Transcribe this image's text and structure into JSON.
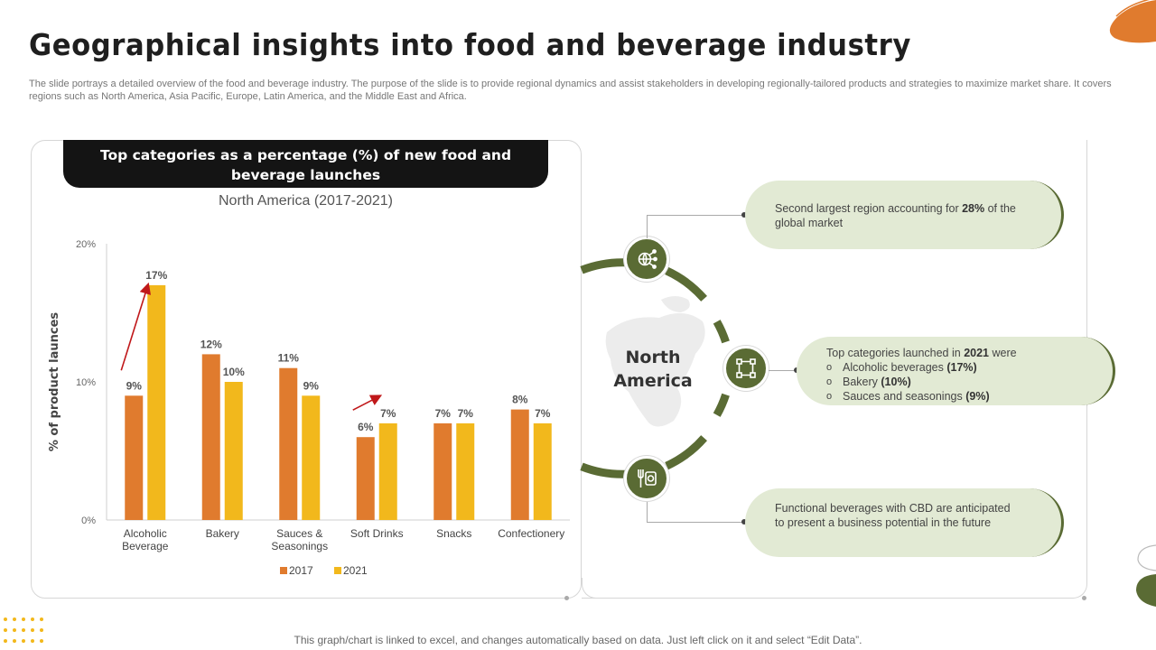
{
  "title": "Geographical insights into food and beverage industry",
  "subtitle": "The slide portrays a detailed overview of the food and beverage industry. The purpose of the slide is to provide regional dynamics and assist stakeholders in developing regionally-tailored products and strategies to maximize market share. It covers regions such as North America, Asia Pacific, Europe, Latin America, and the Middle East and Africa.",
  "chart_header": "Top categories as a percentage (%) of new food and beverage launches",
  "chart_subtitle": "North America (2017-2021)",
  "colors": {
    "series_2017": "#e07b2e",
    "series_2021": "#f2b81c",
    "accent_green": "#5a6b34",
    "callout_bg": "#e2ead4",
    "arrow_red": "#c0181a"
  },
  "chart_data": {
    "type": "bar",
    "ylabel": "% of product launces",
    "ylim": [
      0,
      20
    ],
    "yticks": [
      0,
      10,
      20
    ],
    "ytick_labels": [
      "0%",
      "10%",
      "20%"
    ],
    "categories": [
      [
        "Alcoholic",
        "Beverage"
      ],
      [
        "Bakery"
      ],
      [
        "Sauces &",
        "Seasonings"
      ],
      [
        "Soft Drinks"
      ],
      [
        "Snacks"
      ],
      [
        "Confectionery"
      ]
    ],
    "series": [
      {
        "name": "2017",
        "values": [
          9,
          12,
          11,
          6,
          7,
          8
        ],
        "labels": [
          "9%",
          "12%",
          "11%",
          "6%",
          "7%",
          "8%"
        ]
      },
      {
        "name": "2021",
        "values": [
          17,
          10,
          9,
          7,
          7,
          7
        ],
        "labels": [
          "17%",
          "10%",
          "9%",
          "7%",
          "7%",
          "7%"
        ]
      }
    ],
    "legend": [
      "2017",
      "2021"
    ],
    "legend_position": "bottom",
    "grid": false,
    "arrows_on_categories": [
      0,
      3
    ]
  },
  "circle": {
    "title_line1": "North",
    "title_line2": "America",
    "icons": [
      "global-network-icon",
      "expand-nodes-icon",
      "food-tools-icon"
    ]
  },
  "callouts": {
    "top": {
      "pre": "Second largest region accounting for ",
      "bold": "28%",
      "post": " of the global market"
    },
    "middle": {
      "pre": "Top categories launched in ",
      "bold": "2021",
      "post": " were",
      "items": [
        {
          "text": "Alcoholic beverages ",
          "bold": "(17%)"
        },
        {
          "text": "Bakery ",
          "bold": "(10%)"
        },
        {
          "text": "Sauces and seasonings ",
          "bold": "(9%)"
        }
      ]
    },
    "bottom": {
      "text": "Functional beverages with CBD are anticipated to present a business potential in the future"
    }
  },
  "footer": "This graph/chart is linked to excel, and changes automatically based on data. Just left click on it and select “Edit Data”."
}
